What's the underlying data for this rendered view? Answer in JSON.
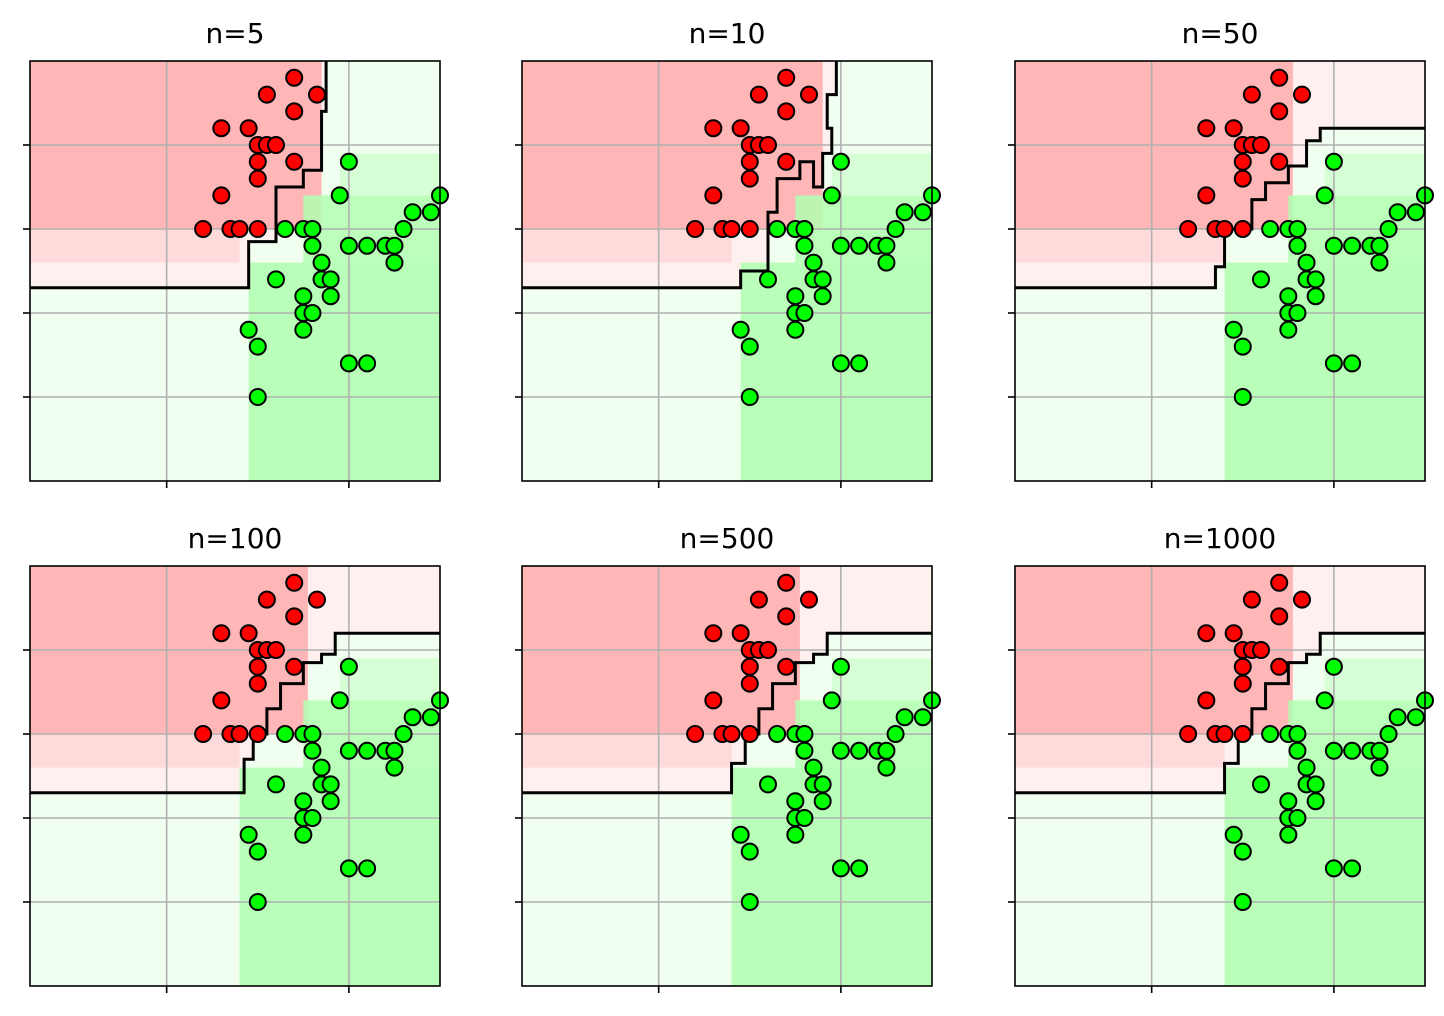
{
  "chart_data": [
    {
      "type": "scatter",
      "title": "n=5",
      "xlim": [
        0,
        4.5
      ],
      "ylim": [
        0,
        5
      ],
      "grid": true,
      "colors": {
        "class0": "#ff0000",
        "class1": "#00ff00",
        "region0": "#ffb2b2",
        "region1": "#b2ffb2"
      },
      "boundary": [
        [
          0,
          2.3
        ],
        [
          2.4,
          2.3
        ],
        [
          2.4,
          2.85
        ],
        [
          2.7,
          2.85
        ],
        [
          2.7,
          3.5
        ],
        [
          3.0,
          3.5
        ],
        [
          3.0,
          3.7
        ],
        [
          3.2,
          3.7
        ],
        [
          3.2,
          4.4
        ],
        [
          3.25,
          4.4
        ],
        [
          3.25,
          5.0
        ]
      ]
    },
    {
      "type": "scatter",
      "title": "n=10",
      "xlim": [
        0,
        4.5
      ],
      "ylim": [
        0,
        5
      ],
      "grid": true,
      "colors": {
        "class0": "#ff0000",
        "class1": "#00ff00",
        "region0": "#ffb2b2",
        "region1": "#b2ffb2"
      },
      "boundary": [
        [
          0,
          2.3
        ],
        [
          2.4,
          2.3
        ],
        [
          2.4,
          2.5
        ],
        [
          2.7,
          2.5
        ],
        [
          2.7,
          3.2
        ],
        [
          2.8,
          3.2
        ],
        [
          2.8,
          3.6
        ],
        [
          3.05,
          3.6
        ],
        [
          3.05,
          3.8
        ],
        [
          3.2,
          3.8
        ],
        [
          3.2,
          3.5
        ],
        [
          3.3,
          3.5
        ],
        [
          3.3,
          3.9
        ],
        [
          3.4,
          3.9
        ],
        [
          3.4,
          4.2
        ],
        [
          3.35,
          4.2
        ],
        [
          3.35,
          4.6
        ],
        [
          3.45,
          4.6
        ],
        [
          3.45,
          5.0
        ]
      ]
    },
    {
      "type": "scatter",
      "title": "n=50",
      "xlim": [
        0,
        4.5
      ],
      "ylim": [
        0,
        5
      ],
      "grid": true,
      "colors": {
        "class0": "#ff0000",
        "class1": "#00ff00",
        "region0": "#ffb2b2",
        "region1": "#b2ffb2"
      },
      "boundary": [
        [
          0,
          2.3
        ],
        [
          2.2,
          2.3
        ],
        [
          2.2,
          2.55
        ],
        [
          2.3,
          2.55
        ],
        [
          2.3,
          3.0
        ],
        [
          2.6,
          3.0
        ],
        [
          2.6,
          3.35
        ],
        [
          2.75,
          3.35
        ],
        [
          2.75,
          3.55
        ],
        [
          3.0,
          3.55
        ],
        [
          3.0,
          3.75
        ],
        [
          3.2,
          3.75
        ],
        [
          3.2,
          4.05
        ],
        [
          3.35,
          4.05
        ],
        [
          3.35,
          4.2
        ],
        [
          4.5,
          4.2
        ]
      ]
    },
    {
      "type": "scatter",
      "title": "n=100",
      "xlim": [
        0,
        4.5
      ],
      "ylim": [
        0,
        5
      ],
      "grid": true,
      "colors": {
        "class0": "#ff0000",
        "class1": "#00ff00",
        "region0": "#ffb2b2",
        "region1": "#b2ffb2"
      },
      "boundary": [
        [
          0,
          2.3
        ],
        [
          2.35,
          2.3
        ],
        [
          2.35,
          2.7
        ],
        [
          2.45,
          2.7
        ],
        [
          2.45,
          3.0
        ],
        [
          2.6,
          3.0
        ],
        [
          2.6,
          3.3
        ],
        [
          2.75,
          3.3
        ],
        [
          2.75,
          3.6
        ],
        [
          3.0,
          3.6
        ],
        [
          3.0,
          3.85
        ],
        [
          3.2,
          3.85
        ],
        [
          3.2,
          3.95
        ],
        [
          3.35,
          3.95
        ],
        [
          3.35,
          4.2
        ],
        [
          4.5,
          4.2
        ]
      ]
    },
    {
      "type": "scatter",
      "title": "n=500",
      "xlim": [
        0,
        4.5
      ],
      "ylim": [
        0,
        5
      ],
      "grid": true,
      "colors": {
        "class0": "#ff0000",
        "class1": "#00ff00",
        "region0": "#ffb2b2",
        "region1": "#b2ffb2"
      },
      "boundary": [
        [
          0,
          2.3
        ],
        [
          2.3,
          2.3
        ],
        [
          2.3,
          2.65
        ],
        [
          2.45,
          2.65
        ],
        [
          2.45,
          3.0
        ],
        [
          2.6,
          3.0
        ],
        [
          2.6,
          3.3
        ],
        [
          2.75,
          3.3
        ],
        [
          2.75,
          3.6
        ],
        [
          3.0,
          3.6
        ],
        [
          3.0,
          3.85
        ],
        [
          3.2,
          3.85
        ],
        [
          3.2,
          3.95
        ],
        [
          3.35,
          3.95
        ],
        [
          3.35,
          4.2
        ],
        [
          4.5,
          4.2
        ]
      ]
    },
    {
      "type": "scatter",
      "title": "n=1000",
      "xlim": [
        0,
        4.5
      ],
      "ylim": [
        0,
        5
      ],
      "grid": true,
      "colors": {
        "class0": "#ff0000",
        "class1": "#00ff00",
        "region0": "#ffb2b2",
        "region1": "#b2ffb2"
      },
      "boundary": [
        [
          0,
          2.3
        ],
        [
          2.3,
          2.3
        ],
        [
          2.3,
          2.65
        ],
        [
          2.45,
          2.65
        ],
        [
          2.45,
          3.0
        ],
        [
          2.6,
          3.0
        ],
        [
          2.6,
          3.3
        ],
        [
          2.75,
          3.3
        ],
        [
          2.75,
          3.6
        ],
        [
          3.0,
          3.6
        ],
        [
          3.0,
          3.85
        ],
        [
          3.2,
          3.85
        ],
        [
          3.2,
          3.95
        ],
        [
          3.35,
          3.95
        ],
        [
          3.35,
          4.2
        ],
        [
          4.5,
          4.2
        ]
      ]
    }
  ],
  "shared": {
    "xticks": [
      1.5,
      3.5
    ],
    "yticks": [
      1,
      2,
      3,
      4
    ],
    "class0_points": [
      [
        2.9,
        4.8
      ],
      [
        2.6,
        4.6
      ],
      [
        3.15,
        4.6
      ],
      [
        2.9,
        4.4
      ],
      [
        2.1,
        4.2
      ],
      [
        2.4,
        4.2
      ],
      [
        2.5,
        4.0
      ],
      [
        2.6,
        4.0
      ],
      [
        2.7,
        4.0
      ],
      [
        2.5,
        3.8
      ],
      [
        2.9,
        3.8
      ],
      [
        2.5,
        3.6
      ],
      [
        2.1,
        3.4
      ],
      [
        1.9,
        3.0
      ],
      [
        2.2,
        3.0
      ],
      [
        2.3,
        3.0
      ],
      [
        2.5,
        3.0
      ]
    ],
    "class1_points": [
      [
        3.5,
        3.8
      ],
      [
        3.4,
        3.4
      ],
      [
        4.5,
        3.4
      ],
      [
        4.4,
        3.2
      ],
      [
        4.2,
        3.2
      ],
      [
        2.8,
        3.0
      ],
      [
        3.0,
        3.0
      ],
      [
        3.1,
        3.0
      ],
      [
        4.1,
        3.0
      ],
      [
        3.1,
        2.8
      ],
      [
        3.5,
        2.8
      ],
      [
        3.7,
        2.8
      ],
      [
        3.9,
        2.8
      ],
      [
        4.0,
        2.8
      ],
      [
        3.2,
        2.6
      ],
      [
        4.0,
        2.6
      ],
      [
        3.2,
        2.4
      ],
      [
        2.7,
        2.4
      ],
      [
        3.3,
        2.4
      ],
      [
        3.0,
        2.2
      ],
      [
        3.3,
        2.2
      ],
      [
        3.0,
        2.0
      ],
      [
        3.1,
        2.0
      ],
      [
        2.4,
        1.8
      ],
      [
        3.0,
        1.8
      ],
      [
        2.5,
        1.6
      ],
      [
        3.5,
        1.4
      ],
      [
        3.7,
        1.4
      ],
      [
        2.5,
        1.0
      ]
    ]
  }
}
